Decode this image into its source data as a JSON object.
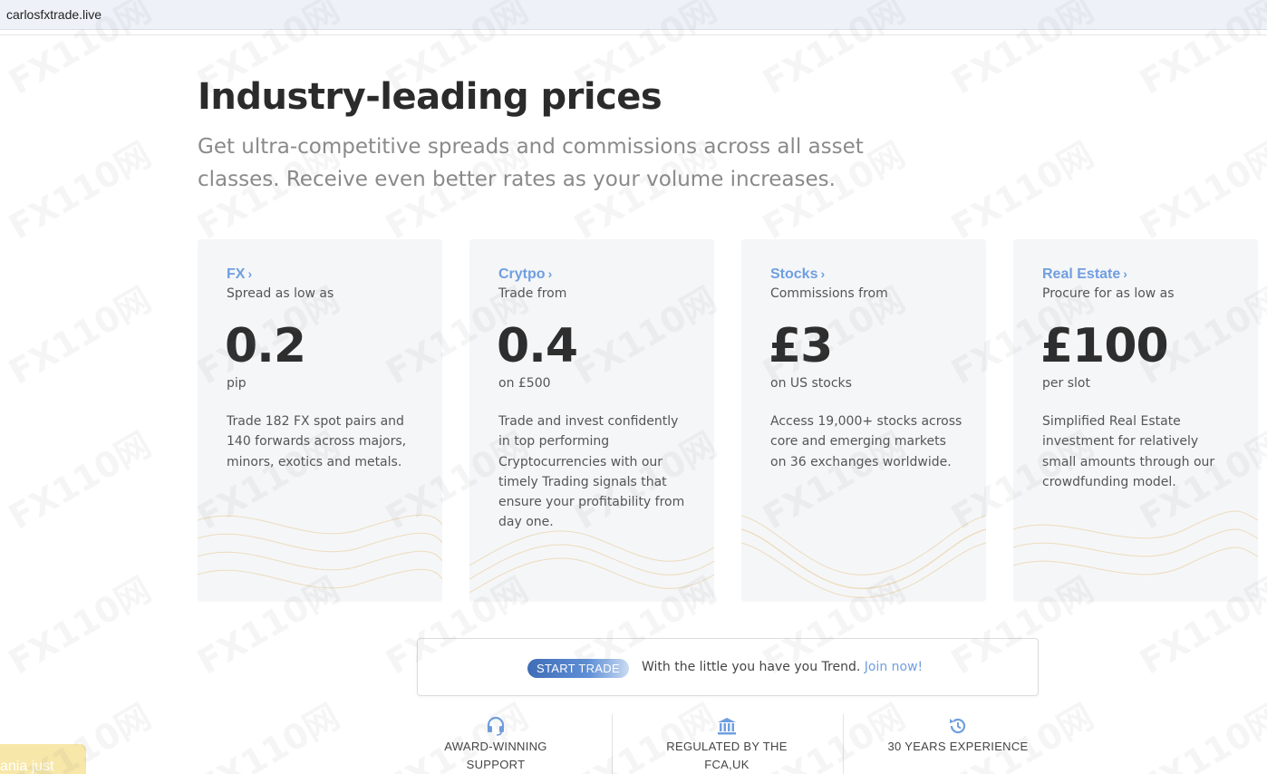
{
  "browser": {
    "url": "carlosfxtrade.live"
  },
  "hero": {
    "title": "Industry-leading prices",
    "subtitle": "Get ultra-competitive spreads and commissions across all asset classes. Receive even better rates as your volume increases."
  },
  "cards": [
    {
      "category": "FX",
      "lead": "Spread as low as",
      "value": "0.2",
      "unit": "pip",
      "description": "Trade 182 FX spot pairs and 140 forwards across majors, minors, exotics and metals."
    },
    {
      "category": "Crytpo",
      "lead": "Trade from",
      "value": "0.4",
      "unit": "on £500",
      "description": "Trade and invest confidently in top performing Cryptocurrencies with our timely Trading signals that ensure your profitability from day one."
    },
    {
      "category": "Stocks",
      "lead": "Commissions from",
      "value": "£3",
      "unit": "on US stocks",
      "description": "Access 19,000+ stocks across core and emerging markets on 36 exchanges worldwide."
    },
    {
      "category": "Real Estate",
      "lead": "Procure for as low as",
      "value": "£100",
      "unit": "per slot",
      "description": "Simplified Real Estate investment for relatively small amounts through our crowdfunding model."
    }
  ],
  "cta": {
    "badge": "START TRADE",
    "message": "With the little you have you Trend.",
    "link": "Join now!"
  },
  "features": [
    {
      "icon": "headset-icon",
      "line1": "AWARD-WINNING",
      "line2": "SUPPORT"
    },
    {
      "icon": "bank-icon",
      "line1": "REGULATED BY THE",
      "line2": "FCA,UK"
    },
    {
      "icon": "history-icon",
      "line1": "30 YEARS EXPERIENCE",
      "line2": ""
    }
  ],
  "toast": {
    "text": "ania just"
  },
  "watermark": {
    "text": "FX110网"
  },
  "colors": {
    "accent": "#6f9fe0",
    "card_bg": "#f5f6f8",
    "toast_bg": "#f7e7a9"
  }
}
